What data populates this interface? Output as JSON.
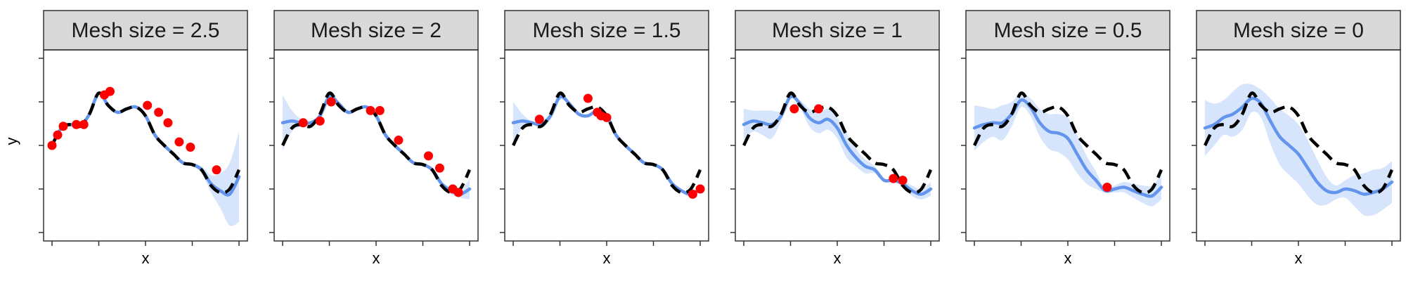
{
  "figure": {
    "y_axis_label": "y"
  },
  "chart_data": {
    "type": "line",
    "xlabel": "x",
    "ylabel": "y",
    "xlim": [
      0,
      1
    ],
    "ylim": [
      0,
      1
    ],
    "x_tick_count": 5,
    "y_tick_count": 5,
    "grid": false,
    "tick_labels_shown": false,
    "x": [
      0,
      0.05,
      0.1,
      0.15,
      0.2,
      0.25,
      0.3,
      0.35,
      0.4,
      0.45,
      0.5,
      0.55,
      0.6,
      0.65,
      0.7,
      0.75,
      0.8,
      0.85,
      0.9,
      0.95,
      1.0
    ],
    "true_function_y": [
      0.5,
      0.6,
      0.62,
      0.61,
      0.68,
      0.8,
      0.73,
      0.69,
      0.71,
      0.72,
      0.67,
      0.56,
      0.5,
      0.45,
      0.4,
      0.39,
      0.36,
      0.27,
      0.23,
      0.25,
      0.36
    ],
    "colors": {
      "true_function": "#000000",
      "posterior_mean": "#6495ed",
      "confidence_band": "#d6e5fb",
      "design_points": "#ff0000",
      "strip_background": "#d9d9d9"
    },
    "legend": "none",
    "panels": [
      {
        "title": "Mesh size = 2.5",
        "mean_y": [
          0.5,
          0.6,
          0.62,
          0.61,
          0.68,
          0.8,
          0.73,
          0.69,
          0.71,
          0.72,
          0.67,
          0.56,
          0.5,
          0.45,
          0.4,
          0.39,
          0.36,
          0.28,
          0.24,
          0.22,
          0.32
        ],
        "band_half_width": [
          0.02,
          0.01,
          0.01,
          0.01,
          0.01,
          0.01,
          0.01,
          0.01,
          0.01,
          0.01,
          0.01,
          0.01,
          0.01,
          0.01,
          0.01,
          0.01,
          0.02,
          0.05,
          0.1,
          0.18,
          0.26
        ],
        "points": [
          {
            "x": 0.0,
            "y": 0.5
          },
          {
            "x": 0.03,
            "y": 0.56
          },
          {
            "x": 0.06,
            "y": 0.61
          },
          {
            "x": 0.13,
            "y": 0.62
          },
          {
            "x": 0.17,
            "y": 0.62
          },
          {
            "x": 0.28,
            "y": 0.79
          },
          {
            "x": 0.31,
            "y": 0.81
          },
          {
            "x": 0.51,
            "y": 0.73
          },
          {
            "x": 0.57,
            "y": 0.69
          },
          {
            "x": 0.62,
            "y": 0.63
          },
          {
            "x": 0.68,
            "y": 0.52
          },
          {
            "x": 0.74,
            "y": 0.49
          },
          {
            "x": 0.88,
            "y": 0.36
          }
        ]
      },
      {
        "title": "Mesh size = 2",
        "mean_y": [
          0.63,
          0.64,
          0.63,
          0.63,
          0.67,
          0.78,
          0.74,
          0.69,
          0.71,
          0.72,
          0.67,
          0.56,
          0.5,
          0.45,
          0.4,
          0.39,
          0.36,
          0.28,
          0.24,
          0.22,
          0.25
        ],
        "band_half_width": [
          0.16,
          0.06,
          0.02,
          0.01,
          0.01,
          0.01,
          0.01,
          0.01,
          0.01,
          0.01,
          0.01,
          0.01,
          0.01,
          0.01,
          0.01,
          0.01,
          0.01,
          0.01,
          0.02,
          0.02,
          0.06
        ],
        "points": [
          {
            "x": 0.11,
            "y": 0.63
          },
          {
            "x": 0.2,
            "y": 0.64
          },
          {
            "x": 0.26,
            "y": 0.75
          },
          {
            "x": 0.47,
            "y": 0.7
          },
          {
            "x": 0.52,
            "y": 0.7
          },
          {
            "x": 0.62,
            "y": 0.53
          },
          {
            "x": 0.78,
            "y": 0.44
          },
          {
            "x": 0.84,
            "y": 0.37
          },
          {
            "x": 0.91,
            "y": 0.25
          },
          {
            "x": 0.94,
            "y": 0.23
          }
        ]
      },
      {
        "title": "Mesh size = 1.5",
        "mean_y": [
          0.63,
          0.64,
          0.63,
          0.62,
          0.67,
          0.78,
          0.74,
          0.68,
          0.67,
          0.7,
          0.67,
          0.56,
          0.5,
          0.45,
          0.4,
          0.39,
          0.36,
          0.28,
          0.24,
          0.22,
          0.25
        ],
        "band_half_width": [
          0.12,
          0.04,
          0.01,
          0.02,
          0.02,
          0.02,
          0.01,
          0.01,
          0.01,
          0.01,
          0.01,
          0.01,
          0.01,
          0.01,
          0.01,
          0.01,
          0.01,
          0.01,
          0.01,
          0.01,
          0.01
        ],
        "points": [
          {
            "x": 0.14,
            "y": 0.65
          },
          {
            "x": 0.4,
            "y": 0.77
          },
          {
            "x": 0.45,
            "y": 0.69
          },
          {
            "x": 0.47,
            "y": 0.67
          },
          {
            "x": 0.5,
            "y": 0.66
          },
          {
            "x": 0.96,
            "y": 0.22
          },
          {
            "x": 1.0,
            "y": 0.25
          }
        ]
      },
      {
        "title": "Mesh size = 1",
        "mean_y": [
          0.62,
          0.64,
          0.63,
          0.62,
          0.67,
          0.78,
          0.74,
          0.66,
          0.63,
          0.65,
          0.6,
          0.5,
          0.43,
          0.38,
          0.36,
          0.3,
          0.3,
          0.28,
          0.24,
          0.22,
          0.25
        ],
        "band_half_width": [
          0.09,
          0.06,
          0.07,
          0.08,
          0.03,
          0.01,
          0.02,
          0.05,
          0.06,
          0.06,
          0.06,
          0.07,
          0.05,
          0.04,
          0.02,
          0.01,
          0.01,
          0.02,
          0.03,
          0.03,
          0.04
        ],
        "points": [
          {
            "x": 0.27,
            "y": 0.71
          },
          {
            "x": 0.4,
            "y": 0.71
          },
          {
            "x": 0.8,
            "y": 0.31
          },
          {
            "x": 0.85,
            "y": 0.3
          }
        ]
      },
      {
        "title": "Mesh size = 0.5",
        "mean_y": [
          0.6,
          0.62,
          0.63,
          0.63,
          0.68,
          0.76,
          0.72,
          0.63,
          0.58,
          0.57,
          0.54,
          0.45,
          0.36,
          0.3,
          0.24,
          0.25,
          0.26,
          0.24,
          0.22,
          0.21,
          0.26
        ],
        "band_half_width": [
          0.13,
          0.1,
          0.08,
          0.1,
          0.07,
          0.04,
          0.05,
          0.08,
          0.1,
          0.11,
          0.12,
          0.11,
          0.08,
          0.05,
          0.01,
          0.02,
          0.03,
          0.04,
          0.05,
          0.06,
          0.07
        ],
        "points": [
          {
            "x": 0.71,
            "y": 0.26
          }
        ]
      },
      {
        "title": "Mesh size = 0",
        "mean_y": [
          0.6,
          0.62,
          0.66,
          0.68,
          0.72,
          0.77,
          0.74,
          0.64,
          0.55,
          0.5,
          0.45,
          0.37,
          0.29,
          0.24,
          0.23,
          0.25,
          0.24,
          0.22,
          0.23,
          0.25,
          0.29
        ],
        "band_half_width": [
          0.16,
          0.12,
          0.1,
          0.13,
          0.13,
          0.08,
          0.08,
          0.13,
          0.16,
          0.17,
          0.17,
          0.16,
          0.13,
          0.08,
          0.04,
          0.05,
          0.09,
          0.12,
          0.13,
          0.12,
          0.12
        ],
        "points": []
      }
    ]
  }
}
